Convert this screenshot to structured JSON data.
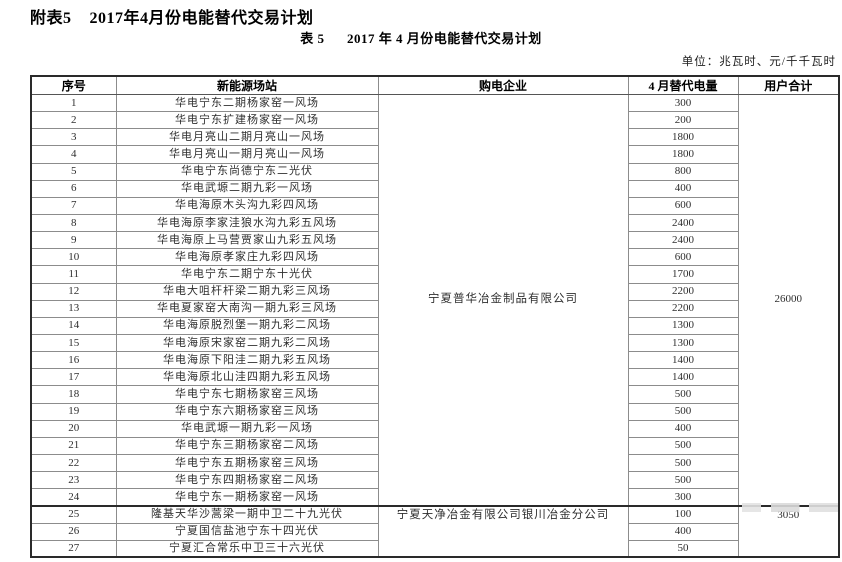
{
  "page": {
    "title": "附表5    2017年4月份电能替代交易计划",
    "subtitle": "表 5      2017 年 4 月份电能替代交易计划",
    "unit_note": "单位：兆瓦时、元/千千瓦时"
  },
  "table": {
    "headers": {
      "no": "序号",
      "station": "新能源场站",
      "buyer": "购电企业",
      "volume": "4 月替代电量",
      "user_total": "用户合计"
    },
    "groups": [
      {
        "company": "宁夏普华冶金制品有限公司",
        "user_total": "26000",
        "rows": [
          {
            "no": "1",
            "station": "华电宁东二期杨家窑一风场",
            "volume": "300"
          },
          {
            "no": "2",
            "station": "华电宁东扩建杨家窑一风场",
            "volume": "200"
          },
          {
            "no": "3",
            "station": "华电月亮山二期月亮山一风场",
            "volume": "1800"
          },
          {
            "no": "4",
            "station": "华电月亮山一期月亮山一风场",
            "volume": "1800"
          },
          {
            "no": "5",
            "station": "华电宁东尚德宁东二光伏",
            "volume": "800"
          },
          {
            "no": "6",
            "station": "华电武塬二期九彩一风场",
            "volume": "400"
          },
          {
            "no": "7",
            "station": "华电海原木头沟九彩四风场",
            "volume": "600"
          },
          {
            "no": "8",
            "station": "华电海原李家洼狼水沟九彩五风场",
            "volume": "2400"
          },
          {
            "no": "9",
            "station": "华电海原上马营贾家山九彩五风场",
            "volume": "2400"
          },
          {
            "no": "10",
            "station": "华电海原孝家庄九彩四风场",
            "volume": "600"
          },
          {
            "no": "11",
            "station": "华电宁东二期宁东十光伏",
            "volume": "1700"
          },
          {
            "no": "12",
            "station": "华电大咀杆杆梁二期九彩三风场",
            "volume": "2200"
          },
          {
            "no": "13",
            "station": "华电夏家窑大南沟一期九彩三风场",
            "volume": "2200"
          },
          {
            "no": "14",
            "station": "华电海原脱烈堡一期九彩二风场",
            "volume": "1300"
          },
          {
            "no": "15",
            "station": "华电海原宋家窑二期九彩二风场",
            "volume": "1300"
          },
          {
            "no": "16",
            "station": "华电海原下阳洼二期九彩五风场",
            "volume": "1400"
          },
          {
            "no": "17",
            "station": "华电海原北山洼四期九彩五风场",
            "volume": "1400"
          },
          {
            "no": "18",
            "station": "华电宁东七期杨家窑三风场",
            "volume": "500"
          },
          {
            "no": "19",
            "station": "华电宁东六期杨家窑三风场",
            "volume": "500"
          },
          {
            "no": "20",
            "station": "华电武塬一期九彩一风场",
            "volume": "400"
          },
          {
            "no": "21",
            "station": "华电宁东三期杨家窑二风场",
            "volume": "500"
          },
          {
            "no": "22",
            "station": "华电宁东五期杨家窑三风场",
            "volume": "500"
          },
          {
            "no": "23",
            "station": "华电宁东四期杨家窑二风场",
            "volume": "500"
          },
          {
            "no": "24",
            "station": "华电宁东一期杨家窑一风场",
            "volume": "300"
          }
        ]
      },
      {
        "company": "宁夏天净冶金有限公司银川冶金分公司",
        "user_total": "3050",
        "rows": [
          {
            "no": "25",
            "station": "隆基天华沙蒿梁一期中卫二十九光伏",
            "volume": "100"
          },
          {
            "no": "26",
            "station": "宁夏国信盐池宁东十四光伏",
            "volume": "400"
          },
          {
            "no": "27",
            "station": "宁夏汇合常乐中卫三十六光伏",
            "volume": "50"
          }
        ]
      }
    ]
  }
}
